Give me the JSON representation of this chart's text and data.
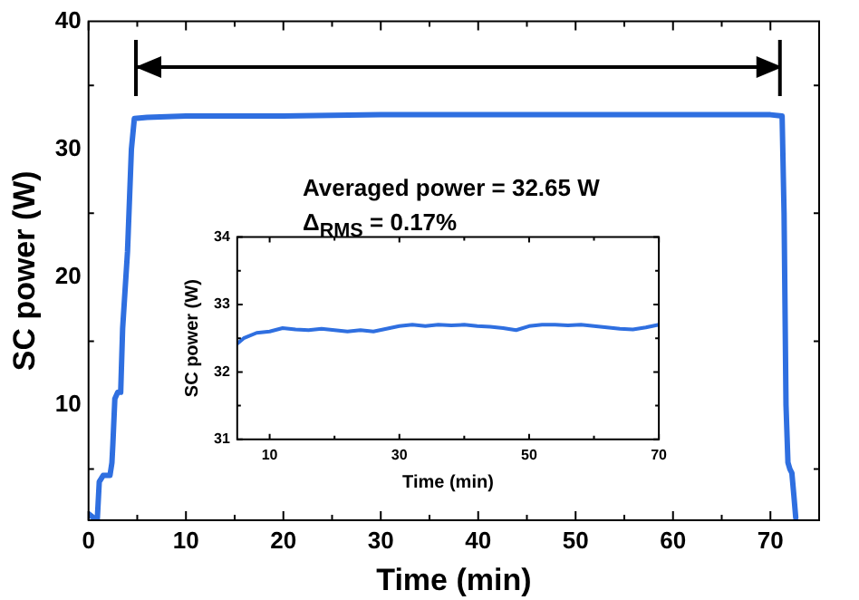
{
  "chart_data": [
    {
      "type": "line",
      "xlabel": "Time (min)",
      "ylabel": "SC power (W)",
      "xlim": [
        0,
        75
      ],
      "ylim": [
        1,
        40
      ],
      "xticks": [
        0,
        {
          "value": 5,
          "label": null
        },
        10,
        {
          "value": 15,
          "label": null
        },
        20,
        {
          "value": 25,
          "label": null
        },
        30,
        {
          "value": 35,
          "label": null
        },
        40,
        {
          "value": 45,
          "label": null
        },
        50,
        {
          "value": 55,
          "label": null
        },
        60,
        {
          "value": 65,
          "label": null
        },
        70
      ],
      "yticks": [
        {
          "value": 5,
          "label": null
        },
        10,
        {
          "value": 15,
          "label": null
        },
        20,
        {
          "value": 25,
          "label": null
        },
        30,
        {
          "value": 35,
          "label": null
        },
        40
      ],
      "x": [
        0,
        0.5,
        0.9,
        1.1,
        1.5,
        2.2,
        2.4,
        2.5,
        2.7,
        3.0,
        3.3,
        3.5,
        4.0,
        4.4,
        4.7,
        6,
        10,
        20,
        30,
        40,
        50,
        60,
        70,
        71.2,
        71.4,
        71.6,
        71.8,
        72,
        72.2,
        72.4,
        72.6
      ],
      "series": [
        {
          "color": "#2f6fe0",
          "values": [
            1.5,
            1.2,
            1.1,
            4,
            4.5,
            4.5,
            5.5,
            7,
            10.5,
            11,
            11,
            16,
            22,
            30,
            32.4,
            32.5,
            32.6,
            32.6,
            32.7,
            32.7,
            32.7,
            32.7,
            32.7,
            32.6,
            25,
            10,
            5.5,
            5,
            4.7,
            3,
            1.2
          ]
        }
      ],
      "annotations": [
        "Averaged power = 32.65 W",
        "Δ$_{RMS}$ = 0.17%"
      ]
    },
    {
      "type": "line",
      "xlabel": "Time (min)",
      "ylabel": "SC power (W)",
      "xlim": [
        5,
        70
      ],
      "ylim": [
        31,
        34
      ],
      "xticks": [
        10,
        {
          "value": 20,
          "label": null
        },
        30,
        {
          "value": 40,
          "label": null
        },
        50,
        {
          "value": 60,
          "label": null
        },
        70
      ],
      "yticks": [
        31,
        {
          "value": 31.5,
          "label": null
        },
        32,
        {
          "value": 32.5,
          "label": null
        },
        33,
        {
          "value": 33.5,
          "label": null
        },
        34
      ],
      "x": [
        5,
        6,
        8,
        10,
        12,
        14,
        16,
        18,
        20,
        22,
        24,
        26,
        28,
        30,
        32,
        34,
        36,
        38,
        40,
        42,
        44,
        46,
        48,
        50,
        52,
        54,
        56,
        58,
        60,
        62,
        64,
        66,
        68,
        70
      ],
      "series": [
        {
          "color": "#2f6fe0",
          "values": [
            32.42,
            32.5,
            32.58,
            32.6,
            32.65,
            32.63,
            32.62,
            32.64,
            32.62,
            32.6,
            32.62,
            32.6,
            32.64,
            32.68,
            32.7,
            32.68,
            32.7,
            32.69,
            32.7,
            32.68,
            32.67,
            32.65,
            32.62,
            32.68,
            32.7,
            32.7,
            32.69,
            32.7,
            32.68,
            32.66,
            32.64,
            32.63,
            32.66,
            32.7
          ]
        }
      ]
    }
  ]
}
